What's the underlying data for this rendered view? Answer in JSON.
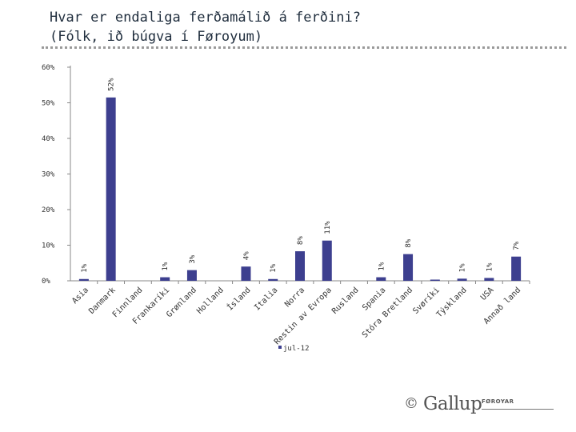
{
  "page": {
    "title_line1": "Hvar er endaliga ferðamálið á ferðini?",
    "title_line2": "(Fólk, ið búgva í Føroyum)"
  },
  "logo": {
    "copyright": "©",
    "brand": "Gallup",
    "sub": "FØROYAR"
  },
  "colors": {
    "bar": "#3d3f8f",
    "axis": "#888888",
    "grid": "#aaaaaa",
    "text": "#333333"
  },
  "chart_data": {
    "type": "bar",
    "title": "Hvar er endaliga ferðamálið á ferðini?",
    "xlabel": "",
    "ylabel": "",
    "ylim": [
      0,
      60
    ],
    "yticks": [
      "0%",
      "10%",
      "20%",
      "30%",
      "40%",
      "50%",
      "60%"
    ],
    "grid": true,
    "legend": "jul-12",
    "categories": [
      "Asia",
      "Danmark",
      "Finnland",
      "Frankaríki",
      "Grønland",
      "Holland",
      "Ísland",
      "Italia",
      "Norra",
      "Restin av Evropa",
      "Rusland",
      "Spania",
      "Stóra Bretland",
      "Svøríki",
      "Týskland",
      "USA",
      "Annað land"
    ],
    "values": [
      0.5,
      51.5,
      0,
      1,
      3,
      0,
      4,
      0.5,
      8.3,
      11.3,
      0,
      1,
      7.5,
      0.2,
      0.6,
      0.8,
      6.8
    ],
    "data_labels": [
      "1%",
      "52%",
      "",
      "1%",
      "3%",
      "",
      "4%",
      "1%",
      "8%",
      "11%",
      "",
      "1%",
      "8%",
      "",
      "1%",
      "1%",
      "7%"
    ],
    "series": [
      {
        "name": "jul-12"
      }
    ]
  }
}
